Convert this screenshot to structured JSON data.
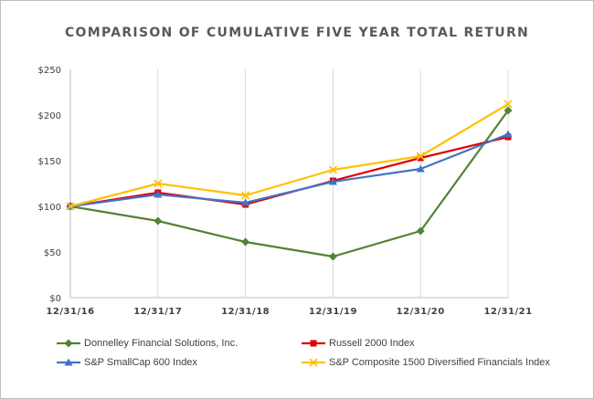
{
  "chart_data": {
    "type": "line",
    "title": "COMPARISON OF CUMULATIVE FIVE YEAR TOTAL RETURN",
    "categories": [
      "12/31/16",
      "12/31/17",
      "12/31/18",
      "12/31/19",
      "12/31/20",
      "12/31/21"
    ],
    "yticks": [
      "$0",
      "$50",
      "$100",
      "$150",
      "$200",
      "$250"
    ],
    "ylim": [
      0,
      250
    ],
    "ytick_values": [
      0,
      50,
      100,
      150,
      200,
      250
    ],
    "grid": "vertical",
    "legend_position": "bottom",
    "series": [
      {
        "name": "Donnelley Financial Solutions, Inc.",
        "color": "#548235",
        "marker": "diamond",
        "values": [
          100,
          84,
          61,
          45,
          73,
          205
        ]
      },
      {
        "name": "Russell 2000 Index",
        "color": "#e00000",
        "marker": "square",
        "values": [
          100,
          115,
          102,
          128,
          153,
          176
        ]
      },
      {
        "name": "S&P SmallCap 600 Index",
        "color": "#4472c4",
        "marker": "triangle",
        "values": [
          100,
          113,
          104,
          127,
          141,
          179
        ]
      },
      {
        "name": "S&P Composite 1500 Diversified Financials Index",
        "color": "#ffc000",
        "marker": "x",
        "values": [
          100,
          125,
          112,
          140,
          155,
          212
        ]
      }
    ]
  }
}
